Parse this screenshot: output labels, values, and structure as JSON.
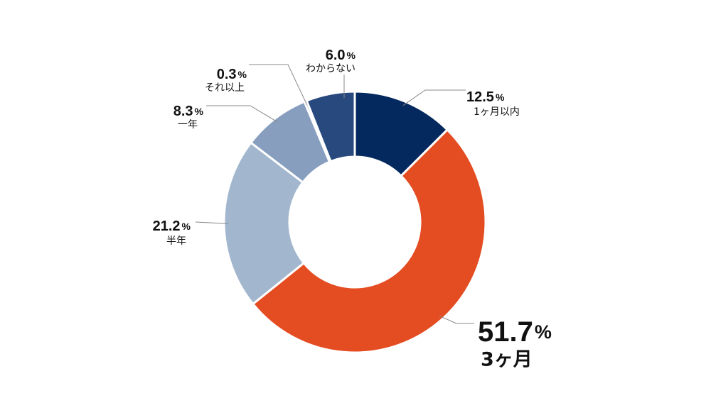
{
  "chart_data": {
    "type": "pie",
    "title": "",
    "unit": "%",
    "highlight_index": 1,
    "slices": [
      {
        "label": "1ヶ月以内",
        "value": 12.5,
        "value_text": "12.5",
        "color": "#04295e"
      },
      {
        "label": "3ヶ月",
        "value": 51.7,
        "value_text": "51.7",
        "color": "#e44c22"
      },
      {
        "label": "半年",
        "value": 21.2,
        "value_text": "21.2",
        "color": "#a2b7ce"
      },
      {
        "label": "一年",
        "value": 8.3,
        "value_text": "8.3",
        "color": "#879ebf"
      },
      {
        "label": "それ以上",
        "value": 0.3,
        "value_text": "0.3",
        "color": "#4c6a96"
      },
      {
        "label": "わからない",
        "value": 6.0,
        "value_text": "6.0",
        "color": "#27497e"
      }
    ]
  }
}
